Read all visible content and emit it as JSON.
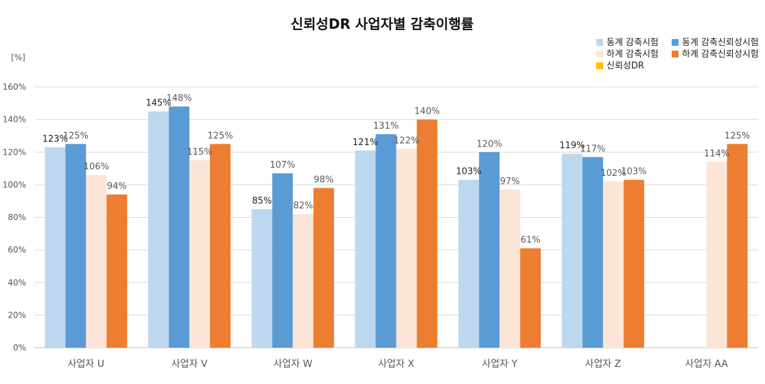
{
  "chart_data": {
    "type": "bar",
    "title": "신뢰성DR 사업자별 감축이행률",
    "ylabel": "[%]",
    "ylim": [
      0,
      160
    ],
    "yticks": [
      "0%",
      "20%",
      "40%",
      "60%",
      "80%",
      "100%",
      "120%",
      "140%",
      "160%"
    ],
    "grid": true,
    "legend_position": "top-right",
    "categories": [
      "사업자 U",
      "사업자 V",
      "사업자 W",
      "사업자 X",
      "사업자 Y",
      "사업자 Z",
      "사업자 AA"
    ],
    "series": [
      {
        "name": "동계 감축시험",
        "color": "#bdd7ee",
        "values": [
          123,
          145,
          85,
          121,
          103,
          119,
          null
        ],
        "labels": [
          "123%",
          "145%",
          "85%",
          "121%",
          "103%",
          "119%",
          ""
        ],
        "label_color": "#222222"
      },
      {
        "name": "동계 감축신뢰성시험",
        "color": "#5b9bd5",
        "values": [
          125,
          148,
          107,
          131,
          120,
          117,
          null
        ],
        "labels": [
          "125%",
          "148%",
          "107%",
          "131%",
          "120%",
          "117%",
          ""
        ],
        "label_color": "#595959"
      },
      {
        "name": "하계 감축시험",
        "color": "#fbe5d6",
        "values": [
          106,
          115,
          82,
          122,
          97,
          102,
          114
        ],
        "labels": [
          "106%",
          "115%",
          "82%",
          "122%",
          "97%",
          "102%",
          "114%"
        ],
        "label_color": "#595959"
      },
      {
        "name": "하계 감축신뢰성시험",
        "color": "#ed7d31",
        "values": [
          94,
          125,
          98,
          140,
          61,
          103,
          125
        ],
        "labels": [
          "94%",
          "125%",
          "98%",
          "140%",
          "61%",
          "103%",
          "125%"
        ],
        "label_color": "#595959"
      },
      {
        "name": "신뢰성DR",
        "color": "#ffc000",
        "values": [
          null,
          null,
          null,
          null,
          null,
          null,
          null
        ],
        "labels": [
          "",
          "",
          "",
          "",
          "",
          "",
          ""
        ],
        "label_color": "#595959"
      }
    ]
  }
}
